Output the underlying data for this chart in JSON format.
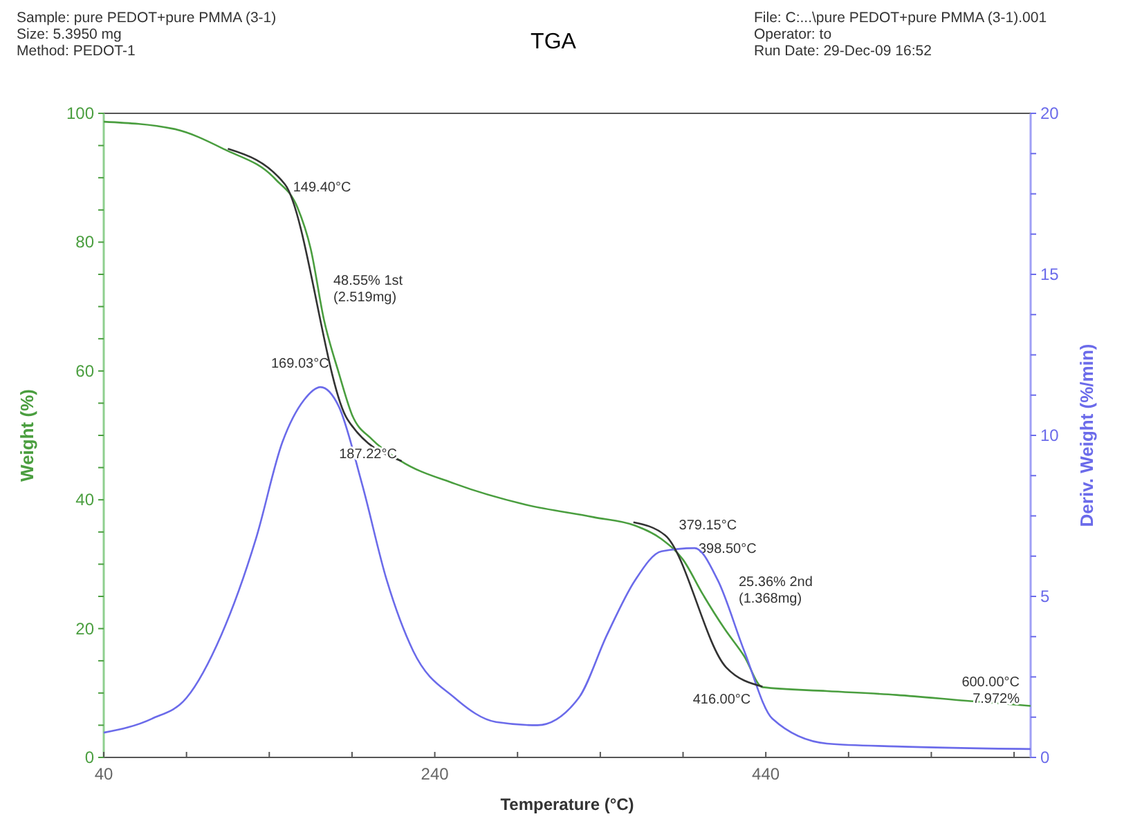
{
  "chart_data": {
    "type": "line",
    "title": "TGA",
    "xlabel": "Temperature (°C)",
    "ylabel": "Weight (%)",
    "y2label": "Deriv. Weight (%/min)",
    "xlim": [
      40,
      600
    ],
    "xticks": [
      40,
      {
        "value": 90,
        "label": null
      },
      {
        "value": 140,
        "label": null
      },
      {
        "value": 190,
        "label": null
      },
      240,
      {
        "value": 290,
        "label": null
      },
      {
        "value": 340,
        "label": null
      },
      {
        "value": 390,
        "label": null
      },
      440,
      {
        "value": 490,
        "label": null
      },
      {
        "value": 540,
        "label": null
      },
      {
        "value": 590,
        "label": null
      }
    ],
    "ylim": [
      0,
      100
    ],
    "yticks": [
      0,
      {
        "value": 5,
        "label": null
      },
      {
        "value": 10,
        "label": null
      },
      {
        "value": 15,
        "label": null
      },
      20,
      {
        "value": 25,
        "label": null
      },
      {
        "value": 30,
        "label": null
      },
      {
        "value": 35,
        "label": null
      },
      40,
      {
        "value": 45,
        "label": null
      },
      {
        "value": 50,
        "label": null
      },
      {
        "value": 55,
        "label": null
      },
      60,
      {
        "value": 65,
        "label": null
      },
      {
        "value": 70,
        "label": null
      },
      {
        "value": 75,
        "label": null
      },
      80,
      {
        "value": 85,
        "label": null
      },
      {
        "value": 90,
        "label": null
      },
      {
        "value": 95,
        "label": null
      },
      100
    ],
    "y2lim": [
      0,
      20
    ],
    "y2ticks": [
      0,
      {
        "value": 1.25,
        "label": null
      },
      {
        "value": 2.5,
        "label": null
      },
      {
        "value": 3.75,
        "label": null
      },
      5,
      {
        "value": 6.25,
        "label": null
      },
      {
        "value": 7.5,
        "label": null
      },
      {
        "value": 8.75,
        "label": null
      },
      10,
      {
        "value": 11.25,
        "label": null
      },
      {
        "value": 12.5,
        "label": null
      },
      {
        "value": 13.75,
        "label": null
      },
      15,
      {
        "value": 16.25,
        "label": null
      },
      {
        "value": 17.5,
        "label": null
      },
      {
        "value": 18.75,
        "label": null
      },
      20
    ],
    "grid": false,
    "series": [
      {
        "color": "#4a9e3f",
        "x": [
          40,
          82,
          113,
          144,
          157,
          165,
          173,
          182,
          190,
          202,
          219,
          252,
          294,
          336,
          361,
          377,
          390,
          402,
          415,
          427,
          438,
          477,
          519,
          561,
          600
        ],
        "values": [
          98.7,
          97.6,
          94.4,
          89.7,
          85.4,
          79,
          68,
          59.7,
          53.2,
          49.4,
          46.1,
          42.5,
          39.3,
          37.3,
          36,
          33.9,
          30.7,
          25.3,
          20,
          15.7,
          10.9,
          10.3,
          9.7,
          8.8,
          8
        ]
      },
      {
        "color": "#6b6bea",
        "axis": "y2",
        "x": [
          40,
          69,
          90,
          111,
          132,
          148,
          161,
          171,
          182,
          196,
          211,
          227,
          252,
          277,
          302,
          327,
          344,
          361,
          377,
          397,
          411,
          427,
          444,
          477,
          519,
          600
        ],
        "values": [
          0.77,
          1.2,
          1.85,
          3.8,
          6.8,
          9.8,
          11.1,
          11.5,
          10.9,
          8.5,
          5.5,
          3.3,
          1.85,
          1.1,
          1.0,
          1.85,
          3.8,
          5.5,
          6.4,
          6.5,
          5.5,
          3.3,
          1.2,
          0.43,
          0.34,
          0.26
        ]
      },
      {
        "color": "#333333",
        "x": [
          115,
          149.4,
          187.22,
          220
        ],
        "values": [
          94.5,
          89,
          52.5,
          46
        ]
      },
      {
        "color": "#333333",
        "x": [
          360,
          379.15,
          416,
          438
        ],
        "values": [
          36.5,
          34.5,
          14,
          11
        ]
      }
    ],
    "annotations": [
      "Sample: pure PEDOT+pure PMMA (3-1)",
      "Size:  5.3950 mg",
      "Method: PEDOT-1",
      "File: C:...\\pure PEDOT+pure PMMA (3-1).001",
      "Operator: to",
      "Run Date: 29-Dec-09 16:52",
      "48.55% 1st\n(2.519mg)",
      "169.03°C",
      "398.50°C",
      "25.36% 2nd\n(1.368mg)",
      {
        "text": "149.40°C",
        "x": 149.4,
        "y": 89
      },
      {
        "text": "187.22°C",
        "x": 187.22,
        "y": 52.5
      },
      {
        "text": "379.15°C",
        "x": 379.15,
        "y": 34.5
      },
      {
        "text": "416.00°C",
        "x": 416,
        "y": 14
      },
      {
        "text": "600.00°C\n7.972%",
        "x": 600,
        "y": 8
      }
    ]
  }
}
